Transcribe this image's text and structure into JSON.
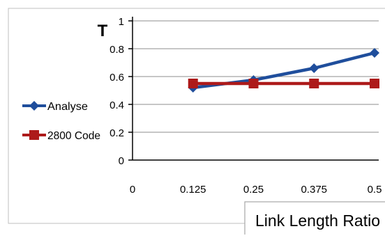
{
  "chart_data": {
    "type": "line",
    "ylabel": "T",
    "xlabel": "Link Length Ratio",
    "x_ticks": [
      "0",
      "0.125",
      "0.25",
      "0.375",
      "0.5"
    ],
    "x": [
      0.125,
      0.25,
      0.375,
      0.5
    ],
    "y_ticks": [
      "0",
      "0.2",
      "0.4",
      "0.6",
      "0.8",
      "1"
    ],
    "ylim": [
      0,
      1
    ],
    "grid": "horizontal",
    "legend_placement": "left",
    "series": [
      {
        "name": "Analyse",
        "values": [
          0.52,
          0.575,
          0.66,
          0.77
        ],
        "color": "#1F4E9C",
        "marker": "diamond"
      },
      {
        "name": "2800 Code",
        "values": [
          0.55,
          0.55,
          0.55,
          0.55
        ],
        "color": "#AD1A1A",
        "marker": "square"
      }
    ]
  }
}
